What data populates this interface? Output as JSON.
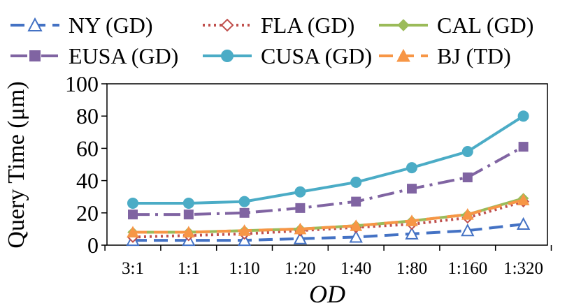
{
  "chart_data": {
    "type": "line",
    "title": "",
    "xlabel": "OD",
    "ylabel": "Query Time (μm)",
    "categories": [
      "3:1",
      "1:1",
      "1:10",
      "1:20",
      "1:40",
      "1:80",
      "1:160",
      "1:320"
    ],
    "ylim": [
      0,
      100
    ],
    "yticks": [
      0,
      20,
      40,
      60,
      80,
      100
    ],
    "grid": false,
    "legend_position": "top",
    "series": [
      {
        "name": "NY (GD)",
        "color": "#4472C4",
        "marker": "open-triangle",
        "dash": "long-dash",
        "values": [
          3,
          3,
          3,
          4,
          5,
          7,
          9,
          13
        ]
      },
      {
        "name": "FLA (GD)",
        "color": "#C0504D",
        "marker": "open-diamond",
        "dash": "dot",
        "values": [
          5,
          6,
          7,
          9,
          11,
          13,
          17,
          27
        ]
      },
      {
        "name": "CAL (GD)",
        "color": "#9BBB59",
        "marker": "diamond",
        "dash": "solid",
        "values": [
          8,
          8,
          9,
          10,
          12,
          15,
          19,
          29
        ]
      },
      {
        "name": "EUSA (GD)",
        "color": "#8064A2",
        "marker": "square",
        "dash": "dash-dot",
        "values": [
          19,
          19,
          20,
          23,
          27,
          35,
          42,
          61
        ]
      },
      {
        "name": "CUSA (GD)",
        "color": "#4BACC6",
        "marker": "circle",
        "dash": "solid",
        "values": [
          26,
          26,
          27,
          33,
          39,
          48,
          58,
          80
        ]
      },
      {
        "name": "BJ (TD)",
        "color": "#F79646",
        "marker": "triangle",
        "dash": "long-dash",
        "values": [
          8,
          8,
          9,
          10,
          12,
          15,
          19,
          28
        ]
      }
    ]
  }
}
